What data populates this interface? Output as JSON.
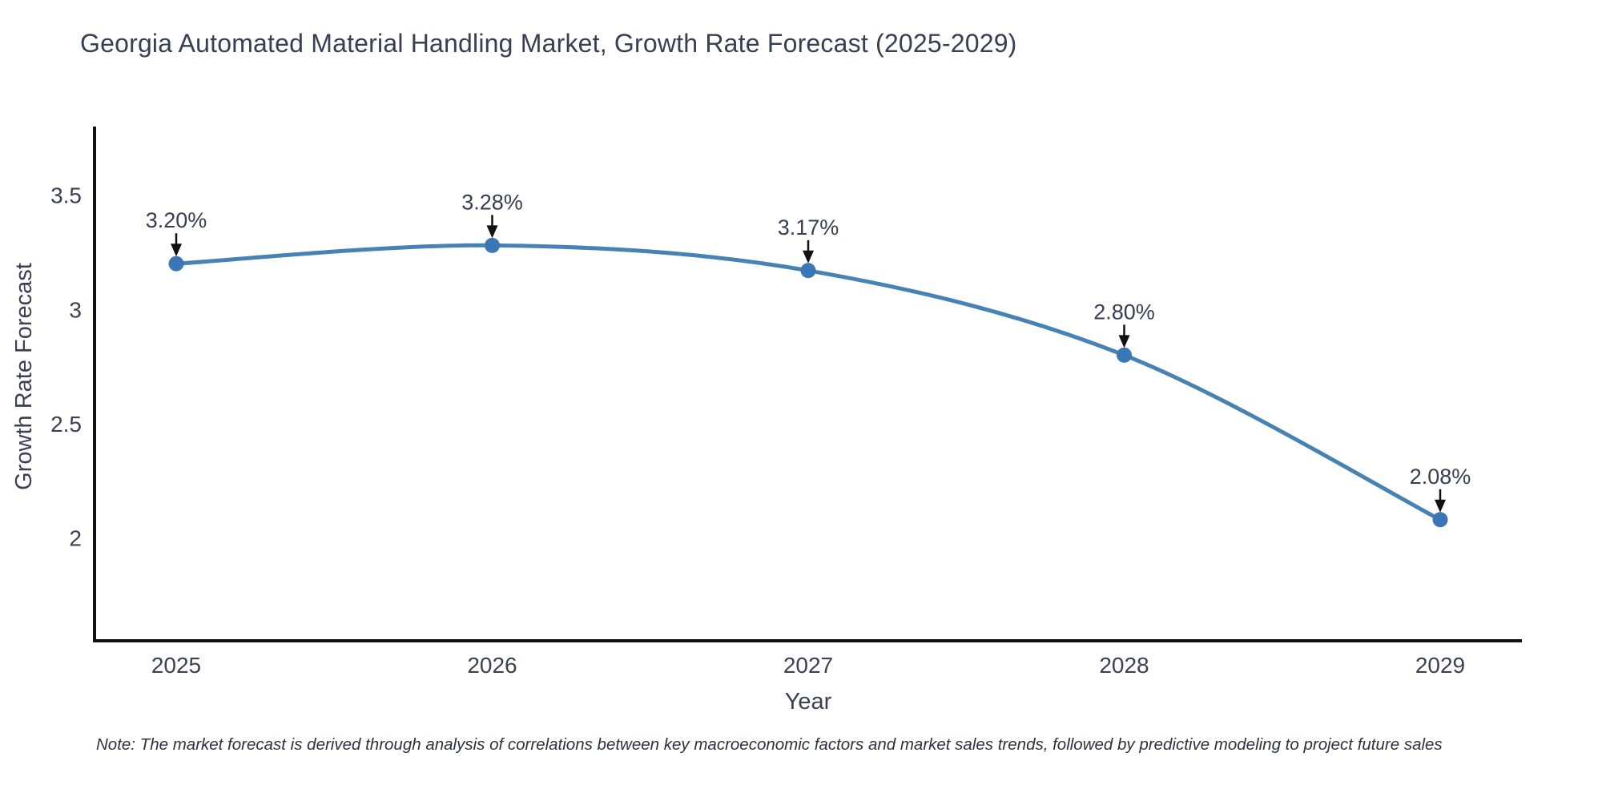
{
  "title": "Georgia Automated Material Handling Market, Growth Rate Forecast (2025-2029)",
  "note": "Note: The market forecast is derived through analysis of correlations between key macroeconomic factors and market sales trends, followed by predictive modeling to project future sales",
  "chart_data": {
    "type": "line",
    "title": "Georgia Automated Material Handling Market, Growth Rate Forecast (2025-2029)",
    "categories": [
      "2025",
      "2026",
      "2027",
      "2028",
      "2029"
    ],
    "values": [
      3.2,
      3.28,
      3.17,
      2.8,
      2.08
    ],
    "point_labels": [
      "3.20%",
      "3.28%",
      "3.17%",
      "2.80%",
      "2.08%"
    ],
    "xlabel": "Year",
    "ylabel": "Growth Rate Forecast",
    "ylim": [
      1.55,
      3.8
    ],
    "yticks": [
      2,
      2.5,
      3,
      3.5
    ],
    "ytick_labels": [
      "2",
      "2.5",
      "3",
      "3.5"
    ],
    "grid": false,
    "legend": "none",
    "annotation_style": "down-arrow",
    "colors": {
      "line": "#4682b4",
      "marker": "#3a77b6",
      "axis": "#111111",
      "arrow": "#111111",
      "text": "#3a4154",
      "title": "#363f54"
    }
  }
}
